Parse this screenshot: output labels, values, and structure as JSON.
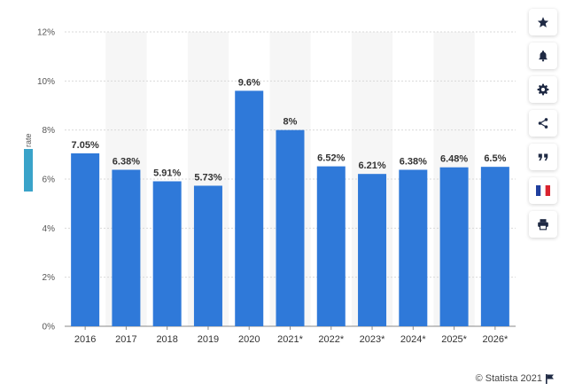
{
  "chart_data": {
    "type": "bar",
    "categories": [
      "2016",
      "2017",
      "2018",
      "2019",
      "2020",
      "2021*",
      "2022*",
      "2023*",
      "2024*",
      "2025*",
      "2026*"
    ],
    "values": [
      7.05,
      6.38,
      5.91,
      5.73,
      9.6,
      8,
      6.52,
      6.21,
      6.38,
      6.48,
      6.5
    ],
    "value_labels": [
      "7.05%",
      "6.38%",
      "5.91%",
      "5.73%",
      "9.6%",
      "8%",
      "6.52%",
      "6.21%",
      "6.38%",
      "6.48%",
      "6.5%"
    ],
    "yticks": [
      0,
      2,
      4,
      6,
      8,
      10,
      12
    ],
    "ytick_labels": [
      "0%",
      "2%",
      "4%",
      "6%",
      "8%",
      "10%",
      "12%"
    ],
    "ylim": [
      0,
      12
    ],
    "ylabel": "rate",
    "xlabel": "",
    "grid": true,
    "bar_color": "#2f79d9",
    "band_color": "#f6f6f6"
  },
  "toolbar": {
    "buttons": [
      {
        "name": "star-icon"
      },
      {
        "name": "bell-icon"
      },
      {
        "name": "gear-icon"
      },
      {
        "name": "share-icon"
      },
      {
        "name": "quote-icon"
      },
      {
        "name": "french-flag-icon"
      },
      {
        "name": "print-icon"
      }
    ]
  },
  "footer": {
    "copyright": "© Statista 2021"
  }
}
